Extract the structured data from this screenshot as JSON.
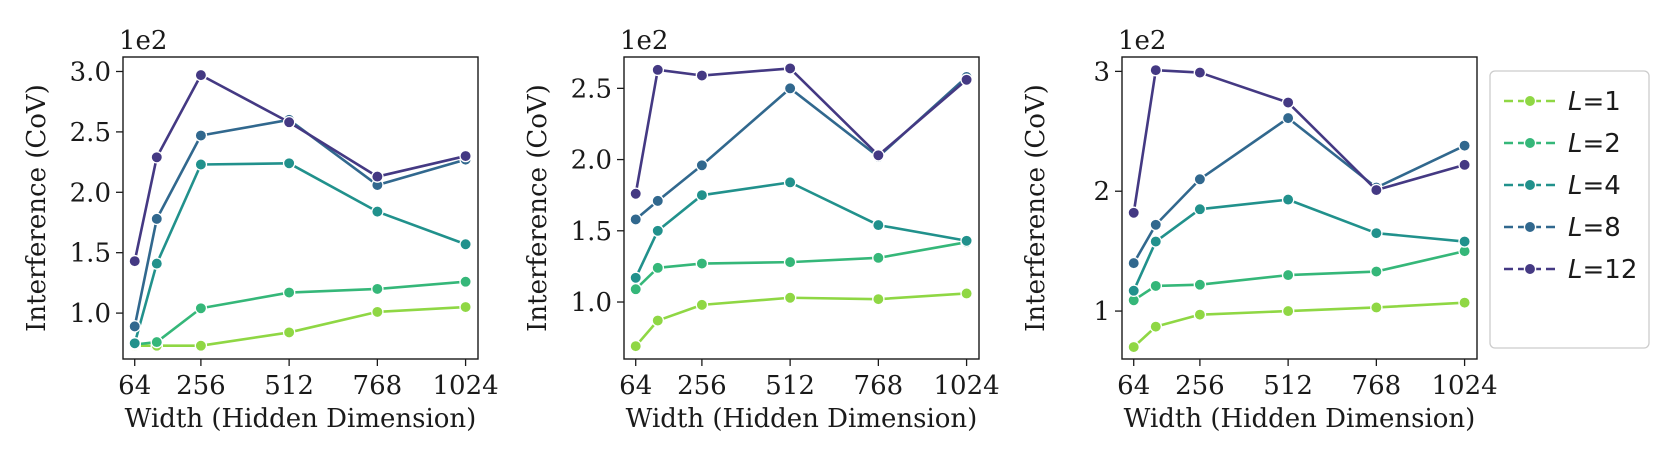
{
  "chart_data": [
    {
      "type": "line",
      "xlabel": "Width (Hidden Dimension)",
      "ylabel": "Interference (CoV)",
      "offset_text": "1e2",
      "x": [
        64,
        128,
        256,
        512,
        768,
        1024
      ],
      "xticks": [
        64,
        256,
        512,
        768,
        1024
      ],
      "xlim": [
        30,
        1060
      ],
      "yticks": [
        1.0,
        1.5,
        2.0,
        2.5,
        3.0
      ],
      "ytick_labels": [
        "1.0",
        "1.5",
        "2.0",
        "2.5",
        "3.0"
      ],
      "ylim": [
        0.62,
        3.12
      ],
      "series": [
        {
          "name": "L=1",
          "values": [
            0.73,
            0.73,
            0.73,
            0.84,
            1.01,
            1.05
          ]
        },
        {
          "name": "L=2",
          "values": [
            0.74,
            0.76,
            1.04,
            1.17,
            1.2,
            1.26
          ]
        },
        {
          "name": "L=4",
          "values": [
            0.75,
            1.41,
            2.23,
            2.24,
            1.84,
            1.57
          ]
        },
        {
          "name": "L=8",
          "values": [
            0.89,
            1.78,
            2.47,
            2.6,
            2.06,
            2.27
          ]
        },
        {
          "name": "L=12",
          "values": [
            1.43,
            2.29,
            2.97,
            2.58,
            2.13,
            2.3
          ]
        }
      ]
    },
    {
      "type": "line",
      "xlabel": "Width (Hidden Dimension)",
      "ylabel": "Interference (CoV)",
      "offset_text": "1e2",
      "x": [
        64,
        128,
        256,
        512,
        768,
        1024
      ],
      "xticks": [
        64,
        256,
        512,
        768,
        1024
      ],
      "xlim": [
        30,
        1060
      ],
      "yticks": [
        1.0,
        1.5,
        2.0,
        2.5
      ],
      "ytick_labels": [
        "1.0",
        "1.5",
        "2.0",
        "2.5"
      ],
      "ylim": [
        0.6,
        2.72
      ],
      "series": [
        {
          "name": "L=1",
          "values": [
            0.69,
            0.87,
            0.98,
            1.03,
            1.02,
            1.06
          ]
        },
        {
          "name": "L=2",
          "values": [
            1.09,
            1.24,
            1.27,
            1.28,
            1.31,
            1.42
          ]
        },
        {
          "name": "L=4",
          "values": [
            1.17,
            1.5,
            1.75,
            1.84,
            1.54,
            1.43
          ]
        },
        {
          "name": "L=8",
          "values": [
            1.58,
            1.71,
            1.96,
            2.5,
            2.02,
            2.58
          ]
        },
        {
          "name": "L=12",
          "values": [
            1.76,
            2.63,
            2.59,
            2.64,
            2.03,
            2.56
          ]
        }
      ]
    },
    {
      "type": "line",
      "xlabel": "Width (Hidden Dimension)",
      "ylabel": "Interference (CoV)",
      "offset_text": "1e2",
      "x": [
        64,
        128,
        256,
        512,
        768,
        1024
      ],
      "xticks": [
        64,
        256,
        512,
        768,
        1024
      ],
      "xlim": [
        30,
        1060
      ],
      "yticks": [
        1,
        2,
        3
      ],
      "ytick_labels": [
        "1",
        "2",
        "3"
      ],
      "ylim": [
        0.6,
        3.12
      ],
      "series": [
        {
          "name": "L=1",
          "values": [
            0.7,
            0.87,
            0.97,
            1.0,
            1.03,
            1.07
          ]
        },
        {
          "name": "L=2",
          "values": [
            1.09,
            1.21,
            1.22,
            1.3,
            1.33,
            1.5
          ]
        },
        {
          "name": "L=4",
          "values": [
            1.17,
            1.58,
            1.85,
            1.93,
            1.65,
            1.58
          ]
        },
        {
          "name": "L=8",
          "values": [
            1.4,
            1.72,
            2.1,
            2.61,
            2.03,
            2.38
          ]
        },
        {
          "name": "L=12",
          "values": [
            1.82,
            3.01,
            2.99,
            2.74,
            2.01,
            2.22
          ]
        }
      ]
    }
  ],
  "legend": {
    "position": "right",
    "items": [
      {
        "prefix": "L",
        "suffix": "=1",
        "color": "#8fd744"
      },
      {
        "prefix": "L",
        "suffix": "=2",
        "color": "#35b779"
      },
      {
        "prefix": "L",
        "suffix": "=4",
        "color": "#21918c"
      },
      {
        "prefix": "L",
        "suffix": "=8",
        "color": "#31688e"
      },
      {
        "prefix": "L",
        "suffix": "=12",
        "color": "#443983"
      }
    ]
  }
}
